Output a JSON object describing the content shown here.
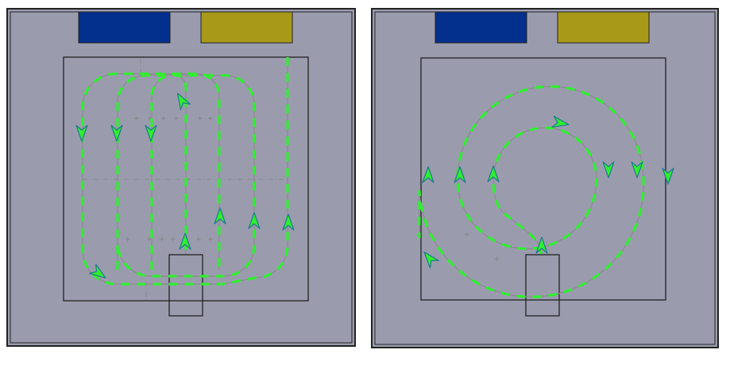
{
  "colors": {
    "background": "#9a9cae",
    "frame": "#222222",
    "blue_block": "#03308c",
    "yellow_block": "#a89a18",
    "path_line": "#8c8c8c",
    "dash": "#2ef02e",
    "arrow_fill": "#2ef02e",
    "arrow_stroke": "#1f7a8c",
    "grid_mark": "#808080"
  },
  "panels": [
    {
      "pattern": "boustrophedon",
      "arrow_icon": "arrowhead-icon"
    },
    {
      "pattern": "spiral",
      "arrow_icon": "arrowhead-icon"
    }
  ]
}
